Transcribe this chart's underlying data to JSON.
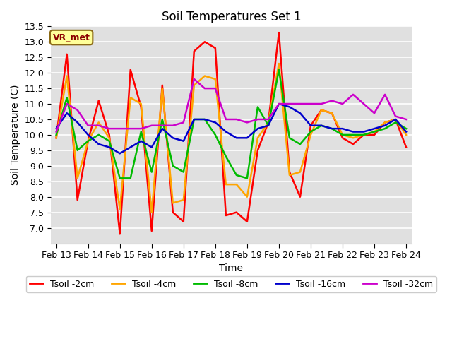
{
  "title": "Soil Temperatures Set 1",
  "xlabel": "Time",
  "ylabel": "Soil Temperature (C)",
  "ylim": [
    6.5,
    13.5
  ],
  "yticks": [
    7.0,
    7.5,
    8.0,
    8.5,
    9.0,
    9.5,
    10.0,
    10.5,
    11.0,
    11.5,
    12.0,
    12.5,
    13.0,
    13.5
  ],
  "plot_bg_color": "#e0e0e0",
  "fig_bg_color": "#ffffff",
  "vr_met_label": "VR_met",
  "series_names": [
    "Tsoil -2cm",
    "Tsoil -4cm",
    "Tsoil -8cm",
    "Tsoil -16cm",
    "Tsoil -32cm"
  ],
  "series_colors": [
    "#ff0000",
    "#ffa500",
    "#00bb00",
    "#0000cc",
    "#cc00cc"
  ],
  "series_data": {
    "Tsoil -2cm": {
      "x": [
        0,
        1,
        2,
        3,
        4,
        5,
        6,
        7,
        8,
        9,
        10,
        11,
        12,
        13,
        14,
        15,
        16,
        17,
        18,
        19,
        20,
        21,
        22,
        23,
        24,
        25,
        26,
        27,
        28,
        29,
        30,
        31,
        32,
        33
      ],
      "y": [
        9.9,
        12.6,
        7.9,
        9.8,
        11.1,
        10.0,
        6.8,
        12.1,
        10.9,
        6.9,
        11.6,
        7.5,
        7.2,
        12.7,
        13.0,
        12.8,
        7.4,
        7.5,
        7.2,
        9.5,
        10.4,
        13.3,
        8.8,
        8.0,
        10.3,
        10.8,
        10.7,
        9.9,
        9.7,
        10.0,
        10.0,
        10.4,
        10.5,
        9.6
      ]
    },
    "Tsoil -4cm": {
      "x": [
        0,
        1,
        2,
        3,
        4,
        5,
        6,
        7,
        8,
        9,
        10,
        11,
        12,
        13,
        14,
        15,
        16,
        17,
        18,
        19,
        20,
        21,
        22,
        23,
        24,
        25,
        26,
        27,
        28,
        29,
        30,
        31,
        32,
        33
      ],
      "y": [
        9.9,
        11.9,
        8.6,
        9.8,
        10.4,
        9.9,
        7.6,
        11.2,
        11.0,
        7.5,
        11.5,
        7.8,
        7.9,
        11.6,
        11.9,
        11.8,
        8.4,
        8.4,
        8.0,
        9.9,
        10.4,
        12.3,
        8.7,
        8.8,
        10.0,
        10.8,
        10.7,
        10.0,
        9.9,
        10.0,
        10.1,
        10.4,
        10.5,
        10.0
      ]
    },
    "Tsoil -8cm": {
      "x": [
        0,
        1,
        2,
        3,
        4,
        5,
        6,
        7,
        8,
        9,
        10,
        11,
        12,
        13,
        14,
        15,
        16,
        17,
        18,
        19,
        20,
        21,
        22,
        23,
        24,
        25,
        26,
        27,
        28,
        29,
        30,
        31,
        32,
        33
      ],
      "y": [
        10.0,
        11.2,
        9.5,
        9.8,
        10.0,
        9.8,
        8.6,
        8.6,
        10.1,
        8.8,
        10.5,
        9.0,
        8.8,
        10.5,
        10.5,
        10.0,
        9.3,
        8.7,
        8.6,
        10.9,
        10.3,
        12.1,
        9.9,
        9.7,
        10.1,
        10.3,
        10.2,
        10.0,
        10.0,
        10.0,
        10.1,
        10.2,
        10.4,
        10.2
      ]
    },
    "Tsoil -16cm": {
      "x": [
        0,
        1,
        2,
        3,
        4,
        5,
        6,
        7,
        8,
        9,
        10,
        11,
        12,
        13,
        14,
        15,
        16,
        17,
        18,
        19,
        20,
        21,
        22,
        23,
        24,
        25,
        26,
        27,
        28,
        29,
        30,
        31,
        32,
        33
      ],
      "y": [
        10.2,
        10.7,
        10.4,
        10.0,
        9.7,
        9.6,
        9.4,
        9.6,
        9.8,
        9.6,
        10.2,
        9.9,
        9.8,
        10.5,
        10.5,
        10.4,
        10.1,
        9.9,
        9.9,
        10.2,
        10.3,
        11.0,
        10.9,
        10.7,
        10.3,
        10.3,
        10.2,
        10.2,
        10.1,
        10.1,
        10.2,
        10.3,
        10.5,
        10.1
      ]
    },
    "Tsoil -32cm": {
      "x": [
        0,
        1,
        2,
        3,
        4,
        5,
        6,
        7,
        8,
        9,
        10,
        11,
        12,
        13,
        14,
        15,
        16,
        17,
        18,
        19,
        20,
        21,
        22,
        23,
        24,
        25,
        26,
        27,
        28,
        29,
        30,
        31,
        32,
        33
      ],
      "y": [
        10.1,
        11.0,
        10.8,
        10.3,
        10.3,
        10.2,
        10.2,
        10.2,
        10.2,
        10.3,
        10.3,
        10.3,
        10.4,
        11.8,
        11.5,
        11.5,
        10.5,
        10.5,
        10.4,
        10.5,
        10.5,
        11.0,
        11.0,
        11.0,
        11.0,
        11.0,
        11.1,
        11.0,
        11.3,
        11.0,
        10.7,
        11.3,
        10.6,
        10.5
      ]
    }
  },
  "xtick_positions": [
    0,
    3,
    6,
    9,
    12,
    15,
    18,
    21,
    24,
    27,
    30,
    33
  ],
  "xtick_labels": [
    "Feb 13",
    "Feb 14",
    "Feb 15",
    "Feb 16",
    "Feb 17",
    "Feb 18",
    "Feb 19",
    "Feb 20",
    "Feb 21",
    "Feb 22",
    "Feb 23",
    "Feb 24"
  ],
  "xlim": [
    -0.5,
    33.5
  ],
  "linewidth": 1.8,
  "title_fontsize": 12,
  "axis_label_fontsize": 10,
  "tick_fontsize": 9,
  "legend_fontsize": 9
}
